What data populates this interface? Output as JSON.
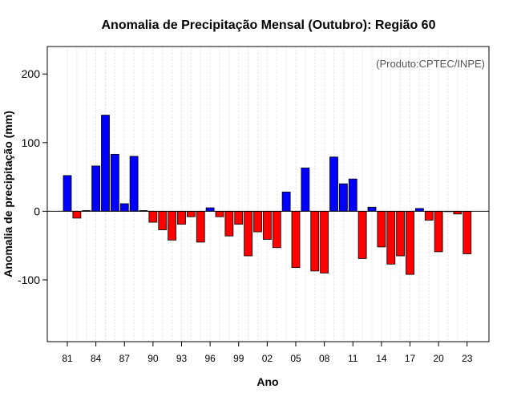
{
  "chart_data": {
    "type": "bar",
    "title": "Anomalia de Precipitação Mensal (Outubro): Região 60",
    "credit": "(Produto:CPTEC/INPE)",
    "xlabel": "Ano",
    "ylabel": "Anomalia de precipitação (mm)",
    "ylim": [
      -190,
      240
    ],
    "yticks": [
      -100,
      0,
      100,
      200
    ],
    "ytick_labels": [
      "-100",
      "0",
      "100",
      "200"
    ],
    "xtick_labels": [
      "81",
      "84",
      "87",
      "90",
      "93",
      "96",
      "99",
      "02",
      "05",
      "08",
      "11",
      "14",
      "17",
      "20",
      "23"
    ],
    "categories": [
      "1981",
      "1982",
      "1983",
      "1984",
      "1985",
      "1986",
      "1987",
      "1988",
      "1989",
      "1990",
      "1991",
      "1992",
      "1993",
      "1994",
      "1995",
      "1996",
      "1997",
      "1998",
      "1999",
      "2000",
      "2001",
      "2002",
      "2003",
      "2004",
      "2005",
      "2006",
      "2007",
      "2008",
      "2009",
      "2010",
      "2011",
      "2012",
      "2013",
      "2014",
      "2015",
      "2016",
      "2017",
      "2018",
      "2019",
      "2020",
      "2021",
      "2022",
      "2023"
    ],
    "values": [
      52,
      -10,
      1,
      66,
      140,
      83,
      11,
      80,
      1,
      -16,
      -27,
      -42,
      -19,
      -8,
      -45,
      5,
      -8,
      -36,
      -19,
      -65,
      -30,
      -41,
      -53,
      28,
      -82,
      63,
      -87,
      -90,
      79,
      40,
      47,
      -69,
      6,
      -52,
      -77,
      -65,
      -92,
      4,
      -13,
      -59,
      0,
      -4,
      -62
    ],
    "colors": {
      "positive": "#0000ff",
      "negative": "#ff0000",
      "zero_line": "#000000",
      "grid": "#d3d3d3"
    }
  }
}
